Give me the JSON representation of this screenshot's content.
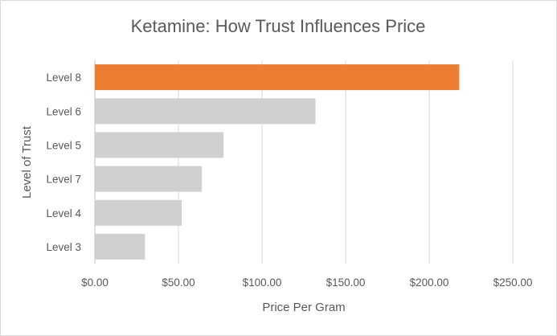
{
  "chart_data": {
    "type": "bar",
    "orientation": "horizontal",
    "title": "Ketamine: How Trust Influences Price",
    "xlabel": "Price Per Gram",
    "ylabel": "Level of Trust",
    "categories": [
      "Level 8",
      "Level 6",
      "Level 5",
      "Level 7",
      "Level 4",
      "Level 3"
    ],
    "values": [
      218,
      132,
      77,
      64,
      52,
      30
    ],
    "xlim": [
      0,
      250
    ],
    "x_ticks": [
      0,
      50,
      100,
      150,
      200,
      250
    ],
    "x_tick_labels": [
      "$0.00",
      "$50.00",
      "$100.00",
      "$150.00",
      "$200.00",
      "$250.00"
    ],
    "grid": true,
    "legend": "none",
    "highlight_category": "Level 8",
    "colors": {
      "highlight": "#ED7D31",
      "default": "#D0D0D0",
      "text": "#595959",
      "grid": "#D9D9D9"
    }
  }
}
